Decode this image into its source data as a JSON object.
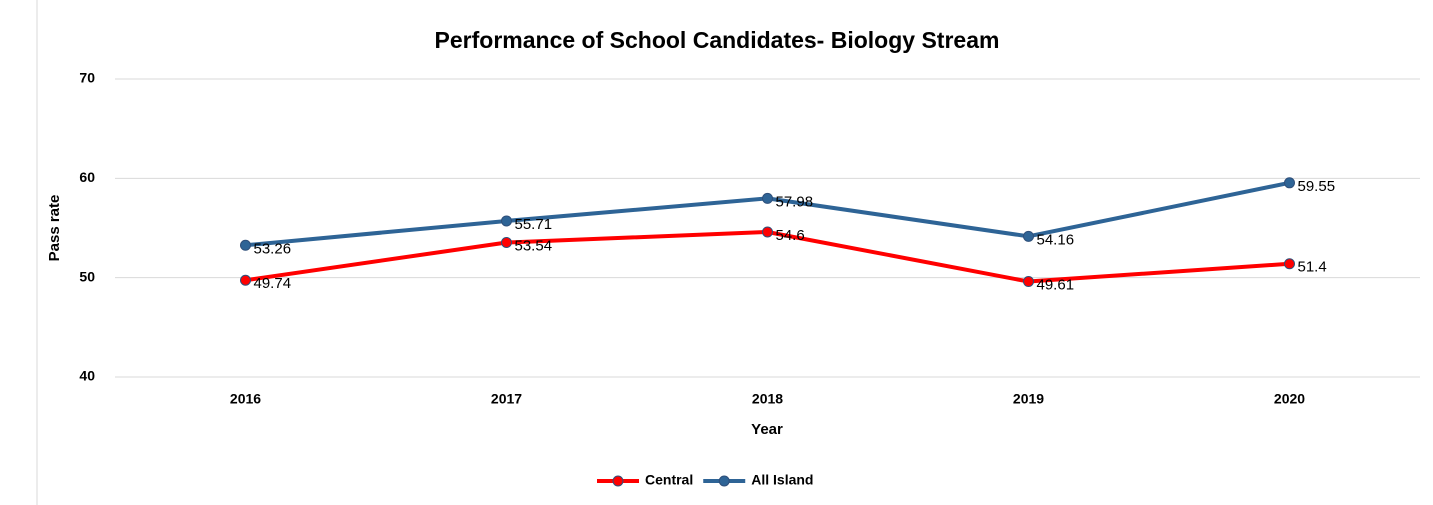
{
  "chart_data": {
    "type": "line",
    "title": "Performance of School Candidates- Biology Stream",
    "xlabel": "Year",
    "ylabel": "Pass rate",
    "categories": [
      "2016",
      "2017",
      "2018",
      "2019",
      "2020"
    ],
    "series": [
      {
        "name": "Central",
        "color": "#ff0000",
        "values": [
          49.74,
          53.54,
          54.6,
          49.61,
          51.4
        ]
      },
      {
        "name": "All Island",
        "color": "#2e6496",
        "values": [
          53.26,
          55.71,
          57.98,
          54.16,
          59.55
        ]
      }
    ],
    "ylim": [
      40,
      70
    ],
    "yticks": [
      40,
      50,
      60,
      70
    ],
    "grid": true,
    "legend": "bottom"
  }
}
